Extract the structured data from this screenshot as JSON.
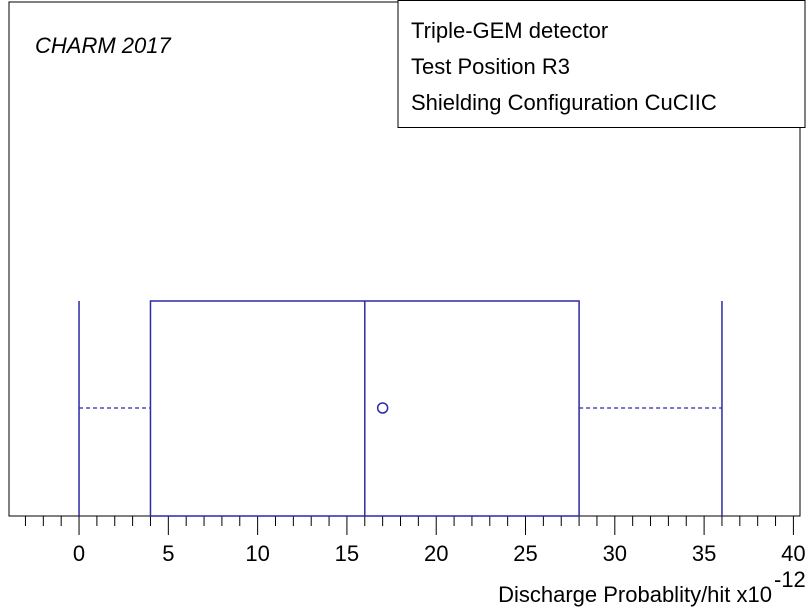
{
  "chart_data": {
    "type": "box",
    "annotation": "CHARM 2017",
    "legend_lines": [
      "Triple-GEM detector",
      "Test Position R3",
      "Shielding Configuration CuCIIC"
    ],
    "xlabel": "Discharge Probablity/hit x10",
    "xlabel_exponent": "-12",
    "box": {
      "min": 0,
      "q1": 4,
      "median": 16,
      "q3": 28,
      "max": 36,
      "mean": 17
    },
    "color": "#2b2ba6",
    "xlim": [
      -4,
      40
    ],
    "xticks": [
      0,
      5,
      10,
      15,
      20,
      25,
      30,
      35,
      40
    ],
    "xminorticks": [
      -3,
      -2,
      -1,
      1,
      2,
      3,
      4,
      6,
      7,
      8,
      9,
      11,
      12,
      13,
      14,
      16,
      17,
      18,
      19,
      21,
      22,
      23,
      24,
      26,
      27,
      28,
      29,
      31,
      32,
      33,
      34,
      36,
      37,
      38,
      39
    ]
  }
}
